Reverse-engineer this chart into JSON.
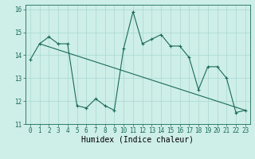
{
  "xlabel": "Humidex (Indice chaleur)",
  "background_color": "#ceeee8",
  "line_color": "#1a6b5a",
  "grid_color": "#aad8d0",
  "xlim": [
    -0.5,
    23.5
  ],
  "ylim": [
    11,
    16.2
  ],
  "yticks": [
    11,
    12,
    13,
    14,
    15,
    16
  ],
  "xticks": [
    0,
    1,
    2,
    3,
    4,
    5,
    6,
    7,
    8,
    9,
    10,
    11,
    12,
    13,
    14,
    15,
    16,
    17,
    18,
    19,
    20,
    21,
    22,
    23
  ],
  "series1_x": [
    0,
    1,
    2,
    3,
    4,
    5,
    6,
    7,
    8,
    9,
    10,
    11,
    12,
    13,
    14,
    15,
    16,
    17,
    18,
    19,
    20,
    21,
    22,
    23
  ],
  "series1_y": [
    13.8,
    14.5,
    14.8,
    14.5,
    14.5,
    11.8,
    11.7,
    12.1,
    11.8,
    11.6,
    14.3,
    15.9,
    14.5,
    14.7,
    14.9,
    14.4,
    14.4,
    13.9,
    12.5,
    13.5,
    13.5,
    13.0,
    11.5,
    11.6
  ],
  "series2_x": [
    1,
    23
  ],
  "series2_y": [
    14.5,
    11.6
  ],
  "tick_fontsize": 5.5,
  "xlabel_fontsize": 7
}
